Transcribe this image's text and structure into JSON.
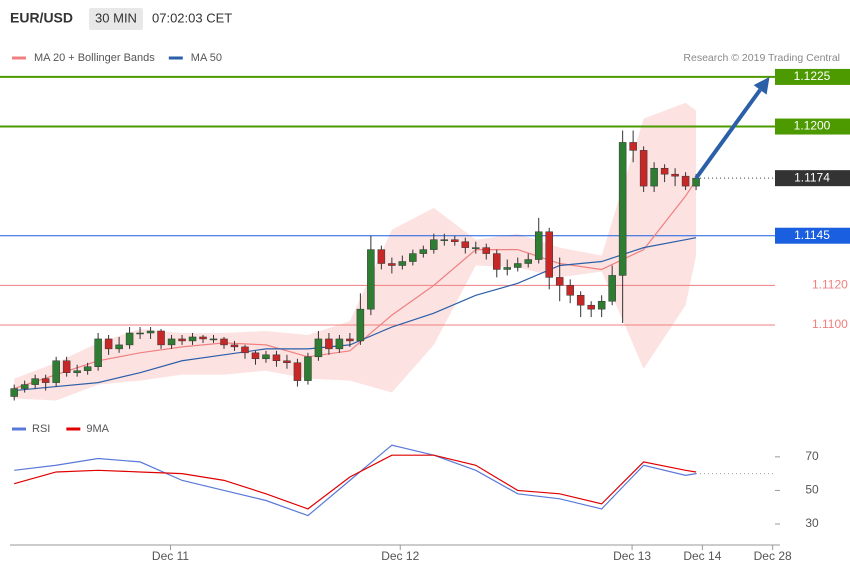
{
  "chart_data": {
    "type": "candlestick",
    "title": "EUR/USD",
    "timeframe": "30 MIN",
    "time": "07:02:03 CET",
    "copyright": "Research © 2019 Trading Central",
    "xlim": [
      -0.4,
      73.0
    ],
    "xticks": [
      {
        "value": 14.9,
        "label": "Dec 11"
      },
      {
        "value": 36.8,
        "label": "Dec 12"
      },
      {
        "value": 58.9,
        "label": "Dec 13"
      },
      {
        "value": 65.6,
        "label": "Dec 14"
      },
      {
        "value": 72.3,
        "label": "Dec 28"
      }
    ],
    "ylim": [
      1.10572,
      1.12436
    ],
    "up_color": "#2e7d32",
    "down_color": "#c62828",
    "candles": [
      [
        1.1064,
        1.107,
        1.1062,
        1.1068
      ],
      [
        1.1068,
        1.1072,
        1.1066,
        1.107
      ],
      [
        1.107,
        1.1075,
        1.1068,
        1.1073
      ],
      [
        1.1073,
        1.1075,
        1.1067,
        1.1071
      ],
      [
        1.1071,
        1.1084,
        1.1069,
        1.1082
      ],
      [
        1.1082,
        1.1084,
        1.1074,
        1.1076
      ],
      [
        1.1076,
        1.108,
        1.1074,
        1.1077
      ],
      [
        1.1077,
        1.1081,
        1.1075,
        1.1079
      ],
      [
        1.1079,
        1.1096,
        1.1077,
        1.1093
      ],
      [
        1.1093,
        1.1095,
        1.1085,
        1.1088
      ],
      [
        1.1088,
        1.1094,
        1.1086,
        1.109
      ],
      [
        1.109,
        1.1099,
        1.1088,
        1.1096
      ],
      [
        1.1096,
        1.1099,
        1.1093,
        1.1096
      ],
      [
        1.1096,
        1.1099,
        1.1093,
        1.1097
      ],
      [
        1.1097,
        1.1098,
        1.1088,
        1.109
      ],
      [
        1.109,
        1.1095,
        1.1088,
        1.1093
      ],
      [
        1.1093,
        1.1095,
        1.109,
        1.1092
      ],
      [
        1.1092,
        1.1096,
        1.109,
        1.1094
      ],
      [
        1.1094,
        1.1095,
        1.1091,
        1.1093
      ],
      [
        1.1093,
        1.1095,
        1.1091,
        1.1093
      ],
      [
        1.1093,
        1.1094,
        1.1088,
        1.109
      ],
      [
        1.109,
        1.1092,
        1.1087,
        1.1089
      ],
      [
        1.1089,
        1.109,
        1.1083,
        1.1086
      ],
      [
        1.1086,
        1.1087,
        1.108,
        1.1083
      ],
      [
        1.1083,
        1.1087,
        1.1081,
        1.1085
      ],
      [
        1.1085,
        1.1087,
        1.1079,
        1.1082
      ],
      [
        1.1082,
        1.1085,
        1.1078,
        1.1081
      ],
      [
        1.1081,
        1.1083,
        1.1069,
        1.1072
      ],
      [
        1.1072,
        1.1086,
        1.107,
        1.1084
      ],
      [
        1.1084,
        1.1097,
        1.1082,
        1.1093
      ],
      [
        1.1093,
        1.1096,
        1.1085,
        1.1088
      ],
      [
        1.1088,
        1.1095,
        1.1086,
        1.1093
      ],
      [
        1.1093,
        1.1096,
        1.1089,
        1.1092
      ],
      [
        1.1092,
        1.1116,
        1.109,
        1.1108
      ],
      [
        1.1108,
        1.1145,
        1.1105,
        1.1138
      ],
      [
        1.1138,
        1.114,
        1.1128,
        1.1131
      ],
      [
        1.1131,
        1.1134,
        1.1126,
        1.113
      ],
      [
        1.113,
        1.1135,
        1.1128,
        1.1132
      ],
      [
        1.1132,
        1.1138,
        1.113,
        1.1136
      ],
      [
        1.1136,
        1.114,
        1.1134,
        1.1138
      ],
      [
        1.1138,
        1.1146,
        1.1136,
        1.1143
      ],
      [
        1.1143,
        1.1146,
        1.114,
        1.1143
      ],
      [
        1.1143,
        1.1145,
        1.114,
        1.1142
      ],
      [
        1.1142,
        1.1144,
        1.1136,
        1.1139
      ],
      [
        1.1139,
        1.1142,
        1.1136,
        1.1139
      ],
      [
        1.1139,
        1.1141,
        1.1133,
        1.1136
      ],
      [
        1.1136,
        1.1138,
        1.1124,
        1.1128
      ],
      [
        1.1128,
        1.1133,
        1.1125,
        1.1129
      ],
      [
        1.1129,
        1.1134,
        1.1127,
        1.1131
      ],
      [
        1.1131,
        1.1136,
        1.1129,
        1.1133
      ],
      [
        1.1133,
        1.1154,
        1.1131,
        1.1147
      ],
      [
        1.1147,
        1.1149,
        1.1118,
        1.1124
      ],
      [
        1.1124,
        1.1134,
        1.1112,
        1.112
      ],
      [
        1.112,
        1.1123,
        1.1111,
        1.1115
      ],
      [
        1.1115,
        1.1117,
        1.1104,
        1.111
      ],
      [
        1.111,
        1.1112,
        1.1104,
        1.1108
      ],
      [
        1.1108,
        1.1115,
        1.1104,
        1.1112
      ],
      [
        1.1112,
        1.113,
        1.111,
        1.1125
      ],
      [
        1.1125,
        1.1198,
        1.1101,
        1.1192
      ],
      [
        1.1192,
        1.1198,
        1.1182,
        1.1188
      ],
      [
        1.1188,
        1.119,
        1.1167,
        1.117
      ],
      [
        1.117,
        1.1182,
        1.1167,
        1.1179
      ],
      [
        1.1179,
        1.1181,
        1.1172,
        1.1176
      ],
      [
        1.1176,
        1.1179,
        1.117,
        1.1175
      ],
      [
        1.1175,
        1.1177,
        1.1168,
        1.117
      ],
      [
        1.117,
        1.1176,
        1.1168,
        1.1174
      ]
    ],
    "indicator_x": [
      0,
      4,
      8,
      12,
      16,
      20,
      24,
      28,
      32,
      36,
      40,
      44,
      48,
      52,
      56,
      60,
      64,
      65
    ],
    "overlays": [
      {
        "name": "MA 20 + Bollinger Bands",
        "color": "#f08080",
        "band_color": "#fde2e2",
        "values": [
          1.1068,
          1.1075,
          1.1082,
          1.1086,
          1.1089,
          1.1091,
          1.109,
          1.1084,
          1.1087,
          1.1105,
          1.112,
          1.1138,
          1.1138,
          1.1131,
          1.1128,
          1.1138,
          1.1165,
          1.1173
        ],
        "upper": [
          1.1073,
          1.1081,
          1.1091,
          1.1098,
          1.1096,
          1.1096,
          1.1097,
          1.1095,
          1.1102,
          1.1148,
          1.1159,
          1.1143,
          1.1146,
          1.1139,
          1.1135,
          1.1204,
          1.1212,
          1.1208
        ],
        "lower": [
          1.1063,
          1.1062,
          1.107,
          1.1072,
          1.1075,
          1.1075,
          1.1077,
          1.1073,
          1.1072,
          1.1066,
          1.109,
          1.113,
          1.1129,
          1.1124,
          1.1127,
          1.1078,
          1.111,
          1.1135
        ]
      },
      {
        "name": "MA 50",
        "color": "#2b5fa8",
        "values": [
          1.1067,
          1.1069,
          1.1071,
          1.1076,
          1.1082,
          1.1085,
          1.1088,
          1.1088,
          1.109,
          1.1099,
          1.1106,
          1.1115,
          1.1121,
          1.113,
          1.1132,
          1.1139,
          1.1143,
          1.1144
        ]
      }
    ],
    "levels": [
      {
        "value": 1.1225,
        "color": "#4c9a00",
        "style": "box"
      },
      {
        "value": 1.12,
        "label": "1.1200",
        "color": "#4c9a00",
        "style": "box"
      },
      {
        "value": 1.1174,
        "color": "#333333",
        "style": "dotted"
      },
      {
        "value": 1.1145,
        "color": "#1a5fe0",
        "style": "box"
      },
      {
        "value": 1.112,
        "label": "1.1120",
        "color": "#f08080",
        "style": "text"
      },
      {
        "value": 1.11,
        "label": "1.1100",
        "color": "#f08080",
        "style": "text"
      }
    ],
    "forecast_arrow": {
      "color": "#2b5fa8",
      "from": [
        65,
        1.1174
      ],
      "to": [
        72,
        1.1225
      ]
    },
    "rsi": {
      "ylim": [
        17.5,
        86
      ],
      "yticks": [
        70,
        50,
        30
      ],
      "series": [
        {
          "name": "RSI",
          "color": "#5a78d8",
          "values": [
            62,
            65,
            69,
            67,
            56,
            50,
            44,
            35,
            56,
            77,
            71,
            62,
            48,
            45,
            39,
            65,
            59,
            60
          ]
        },
        {
          "name": "9MA",
          "color": "#e00000",
          "values": [
            54,
            61,
            62,
            61,
            60,
            56,
            48,
            39,
            58,
            71,
            71,
            65,
            50,
            48,
            42,
            67,
            62,
            61
          ]
        }
      ]
    }
  }
}
